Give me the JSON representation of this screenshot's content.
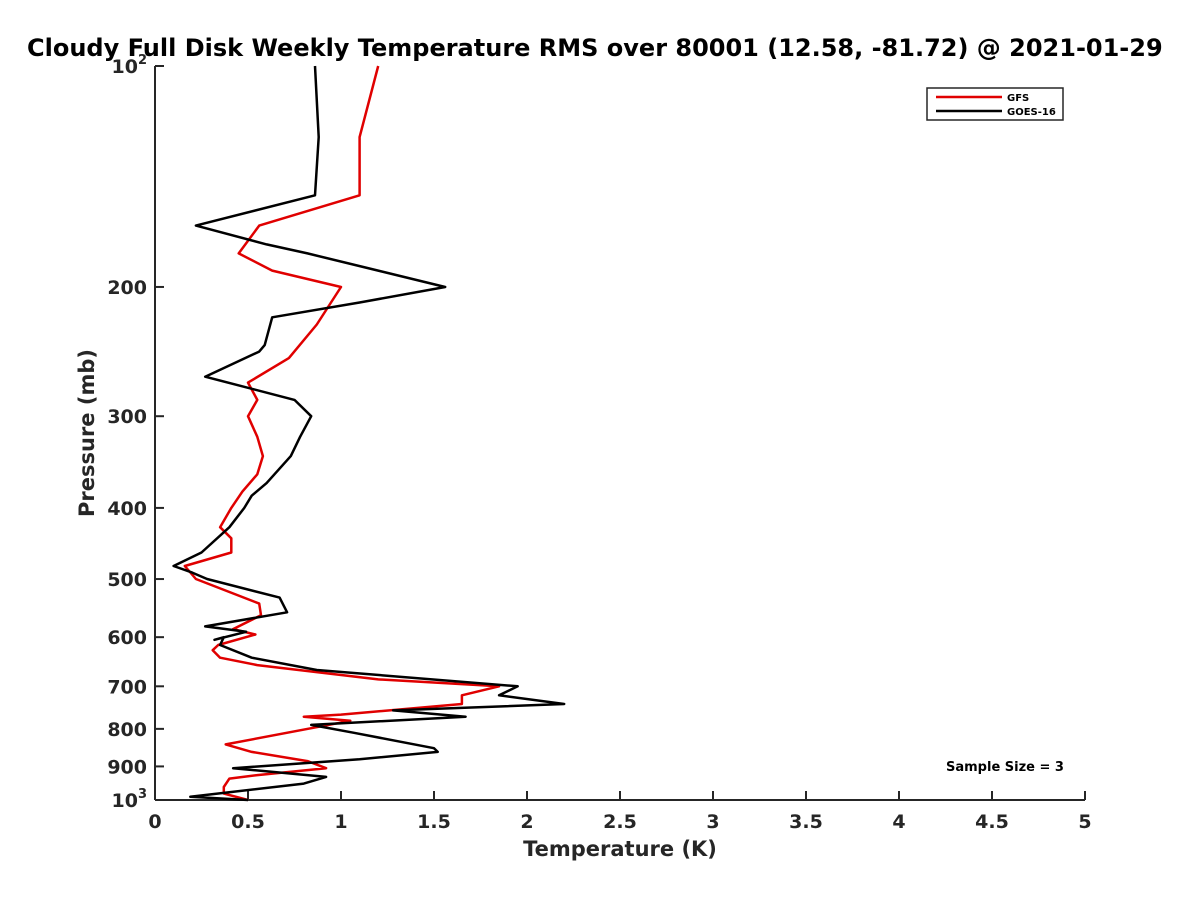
{
  "chart_data": {
    "type": "line",
    "title": "Cloudy Full Disk Weekly Temperature RMS over 80001 (12.58, -81.72) @ 2021-01-29",
    "xlabel": "Temperature (K)",
    "ylabel": "Pressure (mb)",
    "xlim": [
      0,
      5
    ],
    "ylim": [
      1000,
      100
    ],
    "yscale": "log",
    "y_reversed": true,
    "grid": false,
    "legend_position": "top-right",
    "x_ticks": [
      "0",
      "0.5",
      "1",
      "1.5",
      "2",
      "2.5",
      "3",
      "3.5",
      "4",
      "4.5",
      "5"
    ],
    "y_ticks": [
      {
        "value": 100,
        "base": "10",
        "exp": "2"
      },
      {
        "value": 200,
        "base": "200",
        "exp": ""
      },
      {
        "value": 300,
        "base": "300",
        "exp": ""
      },
      {
        "value": 400,
        "base": "400",
        "exp": ""
      },
      {
        "value": 500,
        "base": "500",
        "exp": ""
      },
      {
        "value": 600,
        "base": "600",
        "exp": ""
      },
      {
        "value": 700,
        "base": "700",
        "exp": ""
      },
      {
        "value": 800,
        "base": "800",
        "exp": ""
      },
      {
        "value": 900,
        "base": "900",
        "exp": ""
      },
      {
        "value": 1000,
        "base": "10",
        "exp": "3"
      }
    ],
    "series": [
      {
        "name": "GFS",
        "color": "#e00000",
        "points": [
          [
            1.2,
            100
          ],
          [
            1.1,
            125
          ],
          [
            1.1,
            150
          ],
          [
            0.56,
            165
          ],
          [
            0.45,
            180
          ],
          [
            0.63,
            190
          ],
          [
            1.0,
            200
          ],
          [
            0.87,
            225
          ],
          [
            0.72,
            250
          ],
          [
            0.5,
            270
          ],
          [
            0.55,
            285
          ],
          [
            0.5,
            300
          ],
          [
            0.55,
            320
          ],
          [
            0.58,
            340
          ],
          [
            0.55,
            360
          ],
          [
            0.47,
            380
          ],
          [
            0.41,
            400
          ],
          [
            0.35,
            425
          ],
          [
            0.41,
            440
          ],
          [
            0.41,
            460
          ],
          [
            0.16,
            480
          ],
          [
            0.22,
            500
          ],
          [
            0.56,
            540
          ],
          [
            0.57,
            560
          ],
          [
            0.42,
            585
          ],
          [
            0.54,
            595
          ],
          [
            0.34,
            615
          ],
          [
            0.31,
            625
          ],
          [
            0.35,
            640
          ],
          [
            0.55,
            655
          ],
          [
            1.2,
            685
          ],
          [
            1.85,
            700
          ],
          [
            1.65,
            720
          ],
          [
            1.65,
            740
          ],
          [
            1.0,
            765
          ],
          [
            0.8,
            770
          ],
          [
            1.05,
            780
          ],
          [
            0.38,
            840
          ],
          [
            0.52,
            860
          ],
          [
            0.82,
            885
          ],
          [
            0.92,
            905
          ],
          [
            0.55,
            925
          ],
          [
            0.4,
            935
          ],
          [
            0.37,
            960
          ],
          [
            0.37,
            980
          ],
          [
            0.5,
            1000
          ]
        ]
      },
      {
        "name": "GOES-16",
        "color": "#000000",
        "points": [
          [
            0.86,
            100
          ],
          [
            0.88,
            125
          ],
          [
            0.86,
            150
          ],
          [
            0.22,
            165
          ],
          [
            0.6,
            175
          ],
          [
            0.82,
            180
          ],
          [
            1.2,
            190
          ],
          [
            1.56,
            200
          ],
          [
            1.1,
            210
          ],
          [
            0.63,
            220
          ],
          [
            0.59,
            240
          ],
          [
            0.56,
            245
          ],
          [
            0.27,
            265
          ],
          [
            0.75,
            285
          ],
          [
            0.84,
            300
          ],
          [
            0.78,
            320
          ],
          [
            0.73,
            340
          ],
          [
            0.6,
            370
          ],
          [
            0.52,
            385
          ],
          [
            0.48,
            400
          ],
          [
            0.4,
            425
          ],
          [
            0.25,
            460
          ],
          [
            0.1,
            480
          ],
          [
            0.2,
            490
          ],
          [
            0.28,
            500
          ],
          [
            0.67,
            530
          ],
          [
            0.71,
            555
          ],
          [
            0.27,
            580
          ],
          [
            0.49,
            590
          ],
          [
            0.32,
            605
          ],
          [
            0.37,
            600
          ],
          [
            0.35,
            615
          ],
          [
            0.52,
            640
          ],
          [
            0.87,
            665
          ],
          [
            1.95,
            700
          ],
          [
            1.85,
            720
          ],
          [
            2.2,
            740
          ],
          [
            1.28,
            755
          ],
          [
            1.67,
            770
          ],
          [
            0.84,
            790
          ],
          [
            1.07,
            810
          ],
          [
            1.5,
            850
          ],
          [
            1.52,
            860
          ],
          [
            1.1,
            880
          ],
          [
            0.42,
            905
          ],
          [
            0.92,
            930
          ],
          [
            0.8,
            950
          ],
          [
            0.19,
            990
          ],
          [
            0.5,
            1000
          ]
        ]
      }
    ],
    "annotation": "Sample Size = 3"
  }
}
